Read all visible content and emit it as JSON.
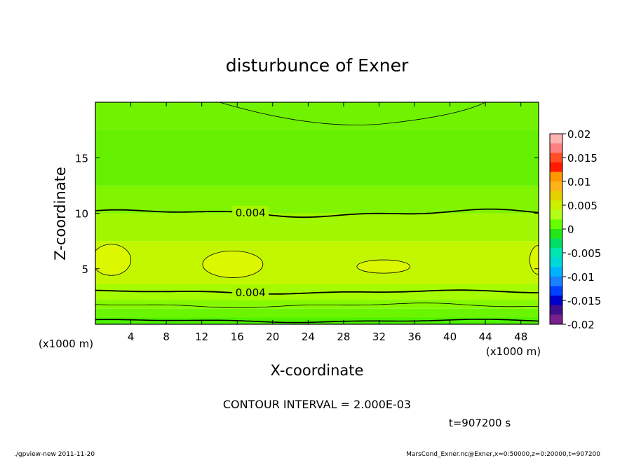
{
  "chart_data": {
    "type": "heatmap",
    "title": "disturbunce of Exner",
    "xlabel": "X-coordinate",
    "ylabel": "Z-coordinate",
    "x_unit_label": "(x1000 m)",
    "y_unit_label": "(x1000 m)",
    "xlim": [
      0,
      50
    ],
    "ylim": [
      0,
      20
    ],
    "x_ticks": [
      4,
      8,
      12,
      16,
      20,
      24,
      28,
      32,
      36,
      40,
      44,
      48
    ],
    "y_ticks": [
      5,
      10,
      15
    ],
    "contour_labels": [
      {
        "text": "0.004",
        "x": 17.5,
        "z": 10.1
      },
      {
        "text": "0.004",
        "x": 17.5,
        "z": 2.9
      }
    ],
    "colorbar": {
      "ticks": [
        "0.02",
        "0.015",
        "0.01",
        "0.005",
        "0",
        "-0.005",
        "-0.01",
        "-0.015",
        "-0.02"
      ],
      "colors": [
        "#ffb3b3",
        "#ff8080",
        "#ff4d26",
        "#ff1a00",
        "#ff9900",
        "#ffb31a",
        "#e6d000",
        "#ccf000",
        "#b3ff1a",
        "#66ff00",
        "#26e61a",
        "#00dd66",
        "#00e6b3",
        "#00d9d9",
        "#00b3ff",
        "#1a80ff",
        "#0040ff",
        "#0000cc",
        "#40108c",
        "#7a208c"
      ]
    },
    "bands": [
      {
        "z0": 0,
        "z1": 0.6,
        "color": "#4df200"
      },
      {
        "z0": 0.6,
        "z1": 1.4,
        "color": "#6cf500"
      },
      {
        "z0": 1.4,
        "z1": 2.2,
        "color": "#86f900"
      },
      {
        "z0": 2.2,
        "z1": 3.6,
        "color": "#a5fb00"
      },
      {
        "z0": 3.6,
        "z1": 7.5,
        "color": "#c3f700"
      },
      {
        "z0": 7.5,
        "z1": 10.0,
        "color": "#a0f700"
      },
      {
        "z0": 10.0,
        "z1": 12.5,
        "color": "#80f400"
      },
      {
        "z0": 12.5,
        "z1": 17.5,
        "color": "#64f000"
      },
      {
        "z0": 17.5,
        "z1": 20,
        "color": "#70f200"
      }
    ],
    "blobs": [
      {
        "x": 1.8,
        "z": 5.8,
        "rx": 2.2,
        "rz": 1.4
      },
      {
        "x": 15.5,
        "z": 5.4,
        "rx": 3.4,
        "rz": 1.2
      },
      {
        "x": 32.5,
        "z": 5.2,
        "rx": 3.0,
        "rz": 0.6
      },
      {
        "x": 50.0,
        "z": 5.8,
        "rx": 1.0,
        "rz": 1.3
      }
    ],
    "contour_interval_text": "CONTOUR INTERVAL = 2.000E-03",
    "time_text": "t=907200 s"
  },
  "footer": {
    "left": "./gpview-new  2011-11-20",
    "right": "MarsCond_Exner.nc@Exner,x=0:50000,z=0:20000,t=907200"
  }
}
